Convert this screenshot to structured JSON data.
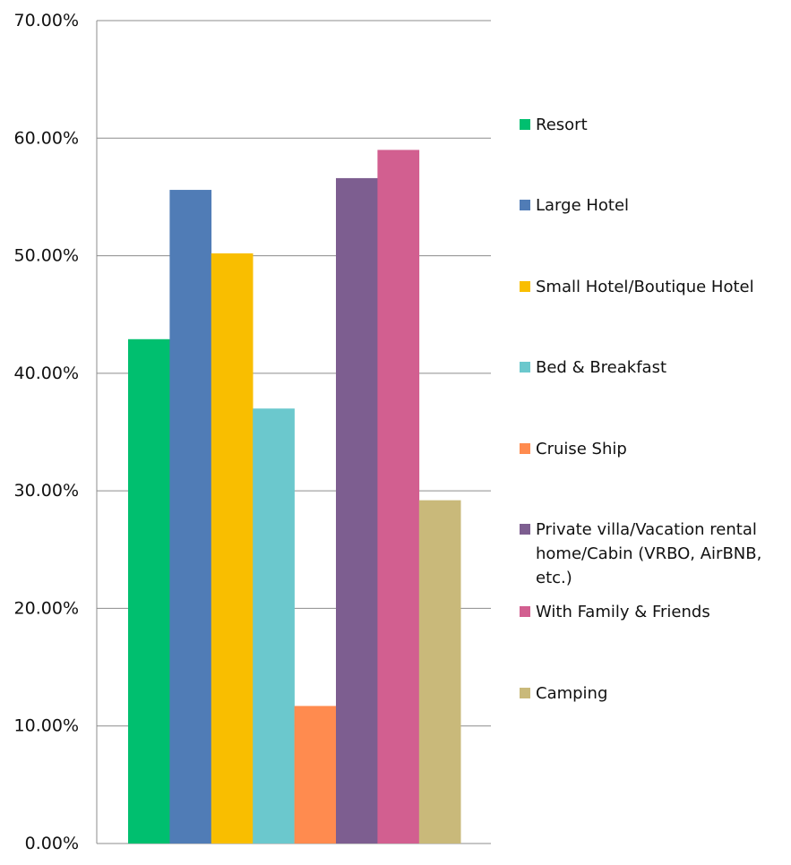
{
  "chart_data": {
    "type": "bar",
    "title": "",
    "xlabel": "",
    "ylabel": "",
    "ylim": [
      0,
      70
    ],
    "y_ticks": [
      "0.00%",
      "10.00%",
      "20.00%",
      "30.00%",
      "40.00%",
      "50.00%",
      "60.00%",
      "70.00%"
    ],
    "grid": true,
    "legend_position": "right",
    "series": [
      {
        "name": "Resort",
        "value": 42.9,
        "color": "#00BF6F"
      },
      {
        "name": "Large Hotel",
        "value": 55.6,
        "color": "#507CB6"
      },
      {
        "name": "Small Hotel/Boutique Hotel",
        "value": 50.2,
        "color": "#F9BE00"
      },
      {
        "name": "Bed & Breakfast",
        "value": 37.0,
        "color": "#6BC8CD"
      },
      {
        "name": "Cruise Ship",
        "value": 11.7,
        "color": "#FF8B4F"
      },
      {
        "name": "Private villa/Vacation rental home/Cabin (VRBO, AirBNB, etc.)",
        "value": 56.6,
        "color": "#7D5E90"
      },
      {
        "name": "With Family & Friends",
        "value": 59.0,
        "color": "#D25F90"
      },
      {
        "name": "Camping",
        "value": 29.2,
        "color": "#C9B97A"
      }
    ]
  }
}
